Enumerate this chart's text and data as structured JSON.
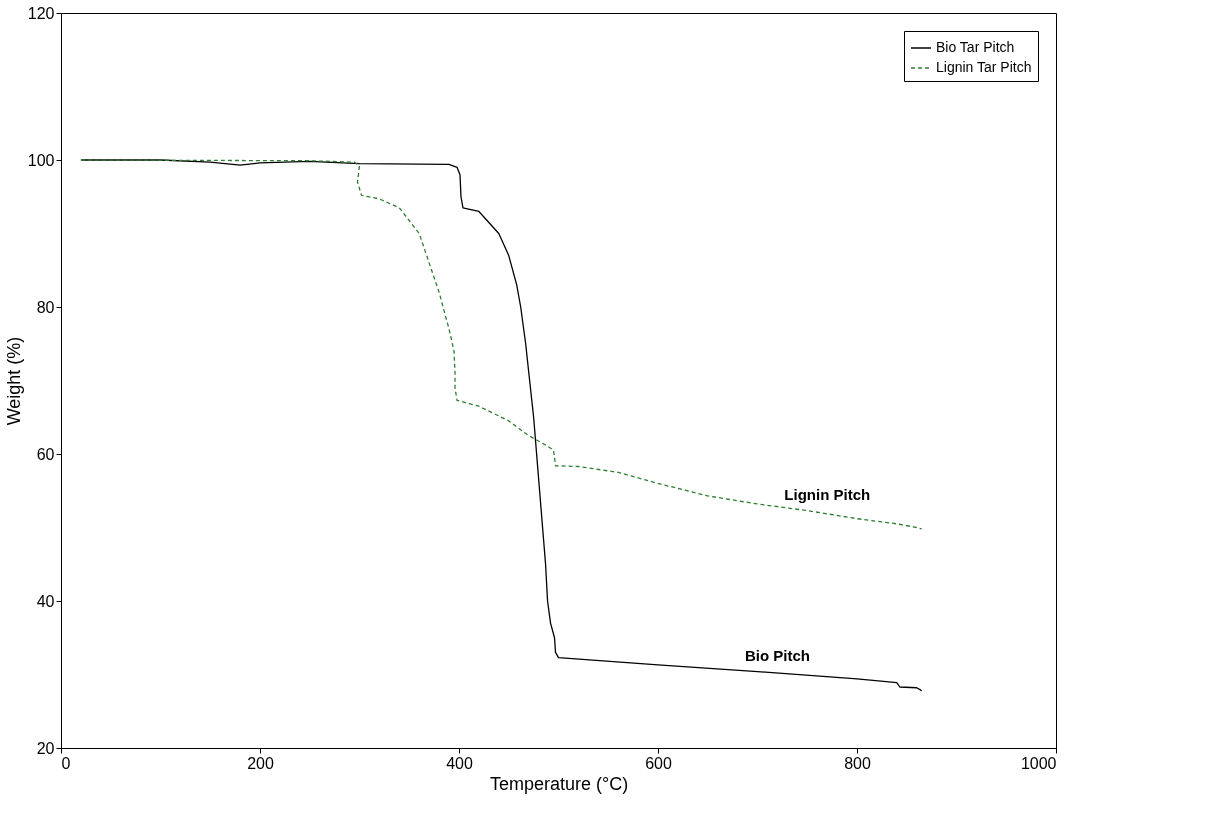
{
  "chart_data": {
    "type": "line",
    "xlabel": "Temperature (°C)",
    "ylabel": "Weight (%)",
    "xlim": [
      0,
      1000
    ],
    "xticks": [
      0,
      200,
      400,
      600,
      800,
      {
        "value": 1000,
        "label": "1000"
      }
    ],
    "ylim": [
      20,
      120
    ],
    "yticks": [
      20,
      40,
      60,
      80,
      100,
      120
    ],
    "grid": false,
    "legend": "top right",
    "marker": "none",
    "annotations": [
      {
        "text": "Lignin Pitch",
        "x": 750,
        "y": 52.3
      },
      {
        "text": "Bio Pitch",
        "x": 700,
        "y": 30.4
      }
    ],
    "series": [
      {
        "name": "Bio Tar Pitch",
        "color": "#000000",
        "line_style": "solid",
        "x": [
          20,
          100,
          150,
          180,
          200,
          250,
          300,
          390,
          398,
          401,
          402,
          404,
          420,
          440,
          450,
          458,
          462,
          467,
          471,
          475,
          478,
          481,
          484,
          487,
          489,
          492,
          496,
          497,
          500,
          600,
          700,
          800,
          840,
          843,
          860,
          865
        ],
        "values": [
          100,
          100,
          99.7,
          99.3,
          99.6,
          99.8,
          99.5,
          99.4,
          99,
          98,
          95,
          93.5,
          93,
          90,
          87,
          83,
          80,
          75,
          70,
          65,
          60,
          55,
          50,
          45,
          40,
          37,
          35,
          33,
          32.3,
          31.3,
          30.4,
          29.4,
          28.9,
          28.3,
          28.2,
          27.8
        ]
      },
      {
        "name": "Lignin Tar Pitch",
        "color": "#2e7d32",
        "line_style": "dashed",
        "x": [
          20,
          250,
          295,
          300,
          298,
          302,
          320,
          340,
          360,
          370,
          380,
          390,
          395,
          396,
          396,
          398,
          420,
          450,
          470,
          490,
          495,
          496,
          497,
          520,
          560,
          600,
          650,
          700,
          750,
          800,
          840,
          860,
          865
        ],
        "values": [
          100,
          99.9,
          99.7,
          99.2,
          97,
          95.2,
          94.7,
          93.5,
          90,
          86,
          82,
          77,
          74,
          71,
          69,
          67.3,
          66.5,
          64.5,
          62.5,
          61,
          60.5,
          59.5,
          58.4,
          58.3,
          57.5,
          56,
          54.3,
          53.2,
          52.3,
          51.2,
          50.5,
          50,
          49.8
        ]
      }
    ]
  }
}
